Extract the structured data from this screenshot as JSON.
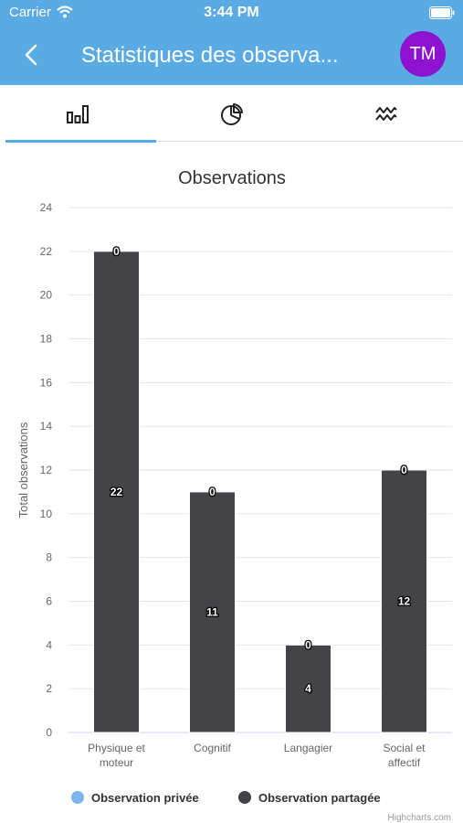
{
  "status_bar": {
    "carrier": "Carrier",
    "time": "3:44 PM"
  },
  "nav": {
    "title": "Statistiques des observa...",
    "avatar_initials": "TM"
  },
  "tabs": [
    {
      "icon": "bar-chart-icon",
      "active": true
    },
    {
      "icon": "pie-chart-icon",
      "active": false
    },
    {
      "icon": "line-wave-icon",
      "active": false
    }
  ],
  "colors": {
    "header": "#5aabe4",
    "avatar": "#8d13d1",
    "series_private": "#7cb5ec",
    "series_shared": "#434348"
  },
  "chart_data": {
    "type": "bar",
    "title": "Observations",
    "ylabel": "Total observations",
    "ylim": [
      0,
      24
    ],
    "yticks": [
      0,
      2,
      4,
      6,
      8,
      10,
      12,
      14,
      16,
      18,
      20,
      22,
      24
    ],
    "categories": [
      [
        "Physique et",
        "moteur"
      ],
      [
        "Cognitif"
      ],
      [
        "Langagier"
      ],
      [
        "Social et",
        "affectif"
      ]
    ],
    "series": [
      {
        "name": "Observation privée",
        "values": [
          0,
          0,
          0,
          0
        ]
      },
      {
        "name": "Observation partagée",
        "values": [
          22,
          11,
          4,
          12
        ]
      }
    ],
    "stacked": true,
    "legend_position": "bottom",
    "credit": "Highcharts.com"
  }
}
